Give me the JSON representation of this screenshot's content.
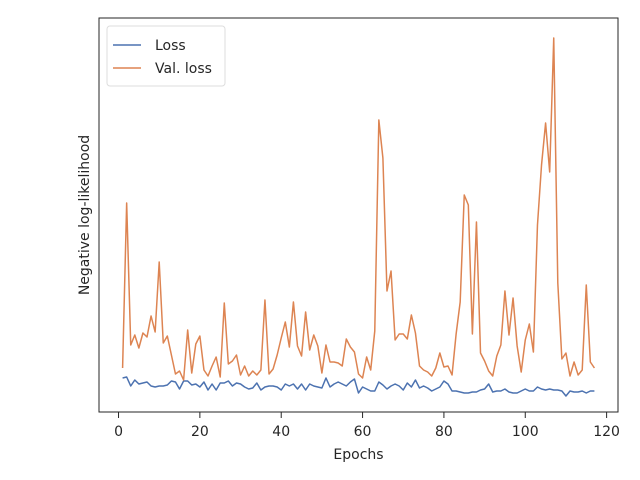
{
  "chart_data": {
    "type": "line",
    "xlabel": "Epochs",
    "ylabel": "Negative log-likelihood",
    "x": [
      1,
      2,
      3,
      4,
      5,
      6,
      7,
      8,
      9,
      10,
      11,
      12,
      13,
      14,
      15,
      16,
      17,
      18,
      19,
      20,
      21,
      22,
      23,
      24,
      25,
      26,
      27,
      28,
      29,
      30,
      31,
      32,
      33,
      34,
      35,
      36,
      37,
      38,
      39,
      40,
      41,
      42,
      43,
      44,
      45,
      46,
      47,
      48,
      49,
      50,
      51,
      52,
      53,
      54,
      55,
      56,
      57,
      58,
      59,
      60,
      61,
      62,
      63,
      64,
      65,
      66,
      67,
      68,
      69,
      70,
      71,
      72,
      73,
      74,
      75,
      76,
      77,
      78,
      79,
      80,
      81,
      82,
      83,
      84,
      85,
      86,
      87,
      88,
      89,
      90,
      91,
      92,
      93,
      94,
      95,
      96,
      97,
      98,
      99,
      100,
      101,
      102,
      103,
      104,
      105,
      106,
      107,
      108,
      109,
      110,
      111,
      112,
      113,
      114,
      115,
      116,
      117
    ],
    "series": [
      {
        "name": "Loss",
        "color": "#4c72b0",
        "values": [
          34,
          35,
          26,
          32,
          28,
          29,
          30,
          26,
          25,
          26,
          26,
          27,
          31,
          30,
          23,
          31,
          31,
          27,
          28,
          25,
          30,
          22,
          28,
          22,
          29,
          29,
          31,
          26,
          29,
          28,
          25,
          23,
          24,
          29,
          22,
          25,
          26,
          26,
          25,
          22,
          28,
          26,
          28,
          23,
          28,
          22,
          28,
          26,
          25,
          24,
          34,
          25,
          28,
          30,
          28,
          26,
          30,
          33,
          19,
          25,
          23,
          21,
          21,
          30,
          27,
          23,
          26,
          28,
          26,
          22,
          29,
          25,
          32,
          24,
          26,
          24,
          21,
          23,
          25,
          31,
          28,
          21,
          21,
          20,
          19,
          19,
          20,
          20,
          22,
          23,
          28,
          20,
          21,
          21,
          23,
          20,
          19,
          19,
          21,
          23,
          21,
          21,
          25,
          23,
          22,
          23,
          22,
          22,
          21,
          16,
          21,
          20,
          20,
          21,
          19,
          21,
          21
        ]
      },
      {
        "name": "Val. loss",
        "color": "#dd8452",
        "values": [
          44,
          209,
          67,
          77,
          64,
          79,
          75,
          96,
          80,
          150,
          69,
          76,
          57,
          38,
          41,
          32,
          82,
          39,
          68,
          76,
          42,
          36,
          46,
          55,
          35,
          109,
          48,
          51,
          57,
          37,
          46,
          36,
          41,
          37,
          42,
          112,
          38,
          43,
          57,
          74,
          90,
          65,
          110,
          66,
          56,
          100,
          62,
          77,
          66,
          39,
          67,
          50,
          50,
          49,
          46,
          73,
          65,
          60,
          38,
          34,
          55,
          42,
          81,
          292,
          254,
          121,
          141,
          72,
          78,
          78,
          73,
          97,
          79,
          46,
          42,
          40,
          36,
          44,
          59,
          45,
          46,
          37,
          78,
          110,
          217,
          207,
          78,
          190,
          59,
          51,
          41,
          36,
          56,
          67,
          121,
          77,
          114,
          66,
          40,
          72,
          88,
          60,
          187,
          247,
          289,
          240,
          374,
          129,
          53,
          59,
          36,
          50,
          37,
          42,
          127,
          50,
          44
        ]
      }
    ],
    "xlim": [
      -4.8,
      122.8
    ],
    "xticks": [
      0,
      20,
      40,
      60,
      80,
      100,
      120
    ],
    "ylim": [
      0,
      394
    ],
    "legend": "upper left",
    "grid": false
  }
}
